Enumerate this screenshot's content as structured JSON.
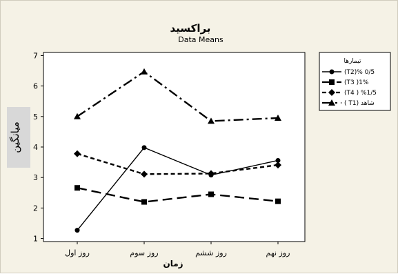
{
  "chart_data": {
    "type": "line",
    "title": "براکسید",
    "subtitle": "Data Means",
    "xlabel": "زمان",
    "ylabel": "میانگین",
    "categories": [
      "روز اول",
      "روز سوم",
      "روز ششم",
      "روز نهم"
    ],
    "ylim": [
      0.9,
      7.1
    ],
    "yticks": [
      1,
      2,
      3,
      4,
      5,
      6,
      7
    ],
    "grid": false,
    "legend_position": "right",
    "legend_title": "تیمارها",
    "series": [
      {
        "name": "(T2)% 0/5",
        "values": [
          1.27,
          3.98,
          3.08,
          3.56
        ],
        "marker": "circle",
        "dash": "solid"
      },
      {
        "name": "(T3 )1%",
        "values": [
          2.66,
          2.2,
          2.45,
          2.22
        ],
        "marker": "square",
        "dash": "long-dash"
      },
      {
        "name": "(T4 ) %1/5",
        "values": [
          3.78,
          3.11,
          3.13,
          3.41
        ],
        "marker": "diamond",
        "dash": "short-dash"
      },
      {
        "name": "( T1) شاهد",
        "values": [
          5.0,
          6.47,
          4.85,
          4.95
        ],
        "marker": "triangle",
        "dash": "dash-dot"
      }
    ]
  }
}
